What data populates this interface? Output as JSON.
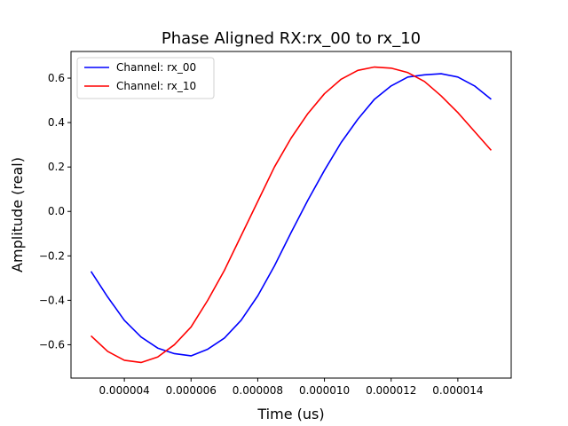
{
  "chart_data": {
    "type": "line",
    "title": "Phase Aligned RX:rx_00 to rx_10",
    "xlabel": "Time (us)",
    "ylabel": "Amplitude (real)",
    "xlim": [
      2.4e-06,
      1.56e-05
    ],
    "ylim": [
      -0.75,
      0.72
    ],
    "grid": false,
    "legend_position": "top-left",
    "x_ticks": [
      4e-06,
      6e-06,
      8e-06,
      1e-05,
      1.2e-05,
      1.4e-05
    ],
    "x_tick_labels": [
      "0.000004",
      "0.000006",
      "0.000008",
      "0.000010",
      "0.000012",
      "0.000014"
    ],
    "y_ticks": [
      -0.6,
      -0.4,
      -0.2,
      0.0,
      0.2,
      0.4,
      0.6
    ],
    "y_tick_labels": [
      "−0.6",
      "−0.4",
      "−0.2",
      "0.0",
      "0.2",
      "0.4",
      "0.6"
    ],
    "series": [
      {
        "name": "Channel: rx_00",
        "color": "#0000ff",
        "x": [
          3e-06,
          3.5e-06,
          4e-06,
          4.5e-06,
          5e-06,
          5.5e-06,
          6e-06,
          6.5e-06,
          7e-06,
          7.5e-06,
          8e-06,
          8.5e-06,
          9e-06,
          9.5e-06,
          1e-05,
          1.05e-05,
          1.1e-05,
          1.15e-05,
          1.2e-05,
          1.25e-05,
          1.3e-05,
          1.35e-05,
          1.4e-05,
          1.45e-05,
          1.5e-05
        ],
        "values": [
          -0.27,
          -0.385,
          -0.49,
          -0.565,
          -0.615,
          -0.64,
          -0.65,
          -0.62,
          -0.57,
          -0.49,
          -0.38,
          -0.245,
          -0.095,
          0.05,
          0.185,
          0.31,
          0.415,
          0.505,
          0.565,
          0.605,
          0.615,
          0.62,
          0.605,
          0.565,
          0.505
        ]
      },
      {
        "name": "Channel: rx_10",
        "color": "#ff0000",
        "x": [
          3e-06,
          3.5e-06,
          4e-06,
          4.5e-06,
          5e-06,
          5.5e-06,
          6e-06,
          6.5e-06,
          7e-06,
          7.5e-06,
          8e-06,
          8.5e-06,
          9e-06,
          9.5e-06,
          1e-05,
          1.05e-05,
          1.1e-05,
          1.15e-05,
          1.2e-05,
          1.25e-05,
          1.3e-05,
          1.35e-05,
          1.4e-05,
          1.45e-05,
          1.5e-05
        ],
        "values": [
          -0.56,
          -0.63,
          -0.67,
          -0.68,
          -0.655,
          -0.6,
          -0.52,
          -0.4,
          -0.265,
          -0.11,
          0.045,
          0.2,
          0.33,
          0.44,
          0.53,
          0.595,
          0.635,
          0.65,
          0.645,
          0.625,
          0.585,
          0.52,
          0.445,
          0.36,
          0.275
        ]
      }
    ]
  }
}
